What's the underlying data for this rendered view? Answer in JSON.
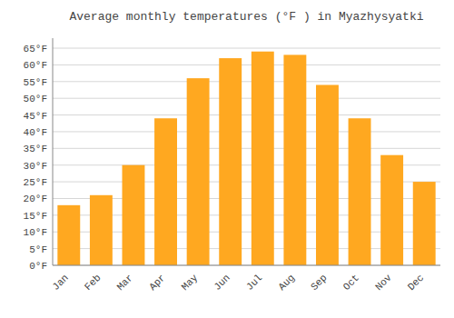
{
  "chart_data": {
    "type": "bar",
    "title": "Average monthly temperatures (°F ) in Myazhysyatki",
    "categories": [
      "Jan",
      "Feb",
      "Mar",
      "Apr",
      "May",
      "Jun",
      "Jul",
      "Aug",
      "Sep",
      "Oct",
      "Nov",
      "Dec"
    ],
    "values": [
      18,
      21,
      30,
      44,
      56,
      62,
      64,
      63,
      54,
      44,
      33,
      25
    ],
    "color": "#FFA820",
    "ylim": [
      0,
      68
    ],
    "yticks": [
      {
        "value": 0,
        "label": "0°F"
      },
      {
        "value": 5,
        "label": "5°F"
      },
      {
        "value": 10,
        "label": "10°F"
      },
      {
        "value": 15,
        "label": "15°F"
      },
      {
        "value": 20,
        "label": "20°F"
      },
      {
        "value": 25,
        "label": "25°F"
      },
      {
        "value": 30,
        "label": "30°F"
      },
      {
        "value": 35,
        "label": "35°F"
      },
      {
        "value": 40,
        "label": "40°F"
      },
      {
        "value": 45,
        "label": "45°F"
      },
      {
        "value": 50,
        "label": "50°F"
      },
      {
        "value": 55,
        "label": "55°F"
      },
      {
        "value": 60,
        "label": "60°F"
      },
      {
        "value": 65,
        "label": "65°F"
      }
    ],
    "grid": true
  }
}
